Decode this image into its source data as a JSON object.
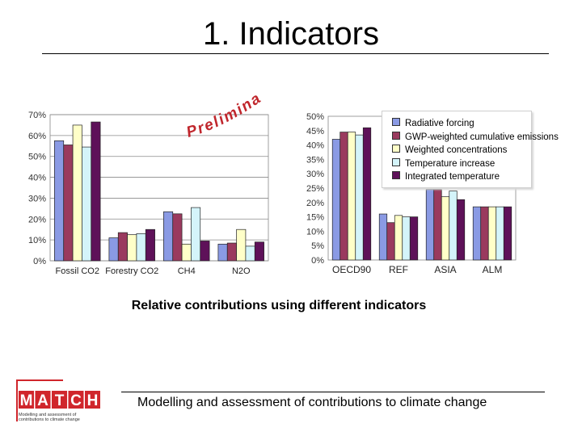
{
  "slide": {
    "title": "1. Indicators",
    "caption": "Relative contributions using different indicators",
    "footer": "Modelling and assessment of contributions to climate change",
    "watermark": "Preliminary"
  },
  "logo": {
    "letters": [
      "M",
      "A",
      "T",
      "C",
      "H"
    ],
    "subtitle_line1": "Modelling and assessment of",
    "subtitle_line2": "contributions to climate change",
    "color": "#d0262c"
  },
  "colors": {
    "series": [
      "#8a9ae4",
      "#9a3a5e",
      "#ffffc8",
      "#d4f4fa",
      "#5e1159"
    ]
  },
  "chart_data": [
    {
      "type": "bar",
      "categories": [
        "Fossil CO2",
        "Forestry CO2",
        "CH4",
        "N2O"
      ],
      "ylim": [
        0,
        70
      ],
      "yticks": [
        "0%",
        "10%",
        "20%",
        "30%",
        "40%",
        "50%",
        "60%",
        "70%"
      ],
      "grid": true,
      "series": [
        {
          "name": "Radiative forcing",
          "values": [
            57.5,
            11,
            23.5,
            8
          ]
        },
        {
          "name": "GWP-weighted cumulative emissions",
          "values": [
            55.5,
            13.5,
            22.5,
            8.5
          ]
        },
        {
          "name": "Weighted concentrations",
          "values": [
            65,
            12.5,
            8,
            15
          ]
        },
        {
          "name": "Temperature increase",
          "values": [
            54.5,
            13,
            25.5,
            7
          ]
        },
        {
          "name": "Integrated temperature",
          "values": [
            66.5,
            15,
            9.5,
            9
          ]
        }
      ]
    },
    {
      "type": "bar",
      "categories": [
        "OECD90",
        "REF",
        "ASIA",
        "ALM"
      ],
      "ylim": [
        0,
        50
      ],
      "yticks": [
        "0%",
        "5%",
        "10%",
        "15%",
        "20%",
        "25%",
        "30%",
        "35%",
        "40%",
        "45%",
        "50%"
      ],
      "legend_position": "top-right",
      "series": [
        {
          "name": "Radiative forcing",
          "values": [
            42,
            16,
            24.5,
            18.5
          ]
        },
        {
          "name": "GWP-weighted cumulative emissions",
          "values": [
            44.5,
            13,
            24.5,
            18.5
          ]
        },
        {
          "name": "Weighted concentrations",
          "values": [
            44.5,
            15.5,
            22,
            18.5
          ]
        },
        {
          "name": "Temperature increase",
          "values": [
            43.5,
            15,
            24,
            18.5
          ]
        },
        {
          "name": "Integrated temperature",
          "values": [
            46,
            15,
            21,
            18.5
          ]
        }
      ]
    }
  ]
}
